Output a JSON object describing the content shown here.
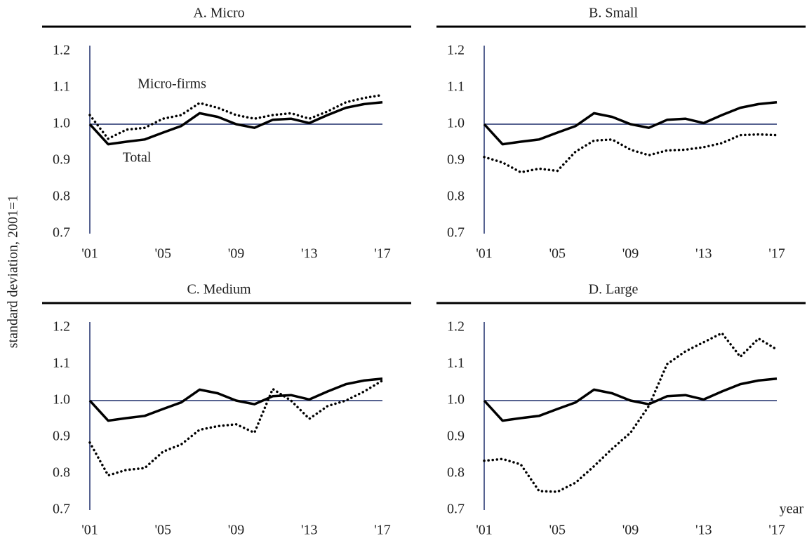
{
  "ylabel": "standard deviation, 2001=1",
  "chart_data": [
    {
      "type": "line",
      "title": "A. Micro",
      "categories": [
        "'01",
        null,
        null,
        null,
        "'05",
        null,
        null,
        null,
        "'09",
        null,
        null,
        null,
        "'13",
        null,
        null,
        null,
        "'17"
      ],
      "series": [
        {
          "name": "Total",
          "color": "#000000",
          "style": "solid",
          "values": [
            1.0,
            0.945,
            0.952,
            0.958,
            0.977,
            0.995,
            1.03,
            1.02,
            1.0,
            0.99,
            1.012,
            1.015,
            1.003,
            1.025,
            1.045,
            1.055,
            1.06
          ]
        },
        {
          "name": "Micro-firms",
          "color": "#000000",
          "style": "dotted",
          "values": [
            1.025,
            0.96,
            0.985,
            0.99,
            1.015,
            1.025,
            1.058,
            1.045,
            1.025,
            1.015,
            1.025,
            1.03,
            1.015,
            1.035,
            1.06,
            1.072,
            1.08
          ]
        }
      ],
      "ylim": [
        0.7,
        1.2
      ],
      "yticks": [
        0.7,
        0.8,
        0.9,
        {
          "value": 1,
          "label": "1.0"
        },
        1.1,
        1.2
      ],
      "refline": 1,
      "axis_color": "#1f2f6b"
    },
    {
      "type": "line",
      "title": "B. Small",
      "categories": [
        "'01",
        null,
        null,
        null,
        "'05",
        null,
        null,
        null,
        "'09",
        null,
        null,
        null,
        "'13",
        null,
        null,
        null,
        "'17"
      ],
      "series": [
        {
          "color": "#000000",
          "style": "solid",
          "values": [
            1.0,
            0.945,
            0.952,
            0.958,
            0.977,
            0.995,
            1.03,
            1.02,
            1.0,
            0.99,
            1.012,
            1.015,
            1.003,
            1.025,
            1.045,
            1.055,
            1.06
          ]
        },
        {
          "color": "#000000",
          "style": "dotted",
          "values": [
            0.91,
            0.895,
            0.868,
            0.878,
            0.872,
            0.925,
            0.955,
            0.958,
            0.93,
            0.915,
            0.928,
            0.93,
            0.937,
            0.948,
            0.97,
            0.972,
            0.97
          ]
        }
      ],
      "ylim": [
        0.7,
        1.2
      ],
      "yticks": [
        0.7,
        0.8,
        0.9,
        {
          "value": 1,
          "label": "1.0"
        },
        1.1,
        1.2
      ],
      "refline": 1,
      "axis_color": "#1f2f6b"
    },
    {
      "type": "line",
      "title": "C. Medium",
      "categories": [
        "'01",
        null,
        null,
        null,
        "'05",
        null,
        null,
        null,
        "'09",
        null,
        null,
        null,
        "'13",
        null,
        null,
        null,
        "'17"
      ],
      "series": [
        {
          "color": "#000000",
          "style": "solid",
          "values": [
            1.0,
            0.945,
            0.952,
            0.958,
            0.977,
            0.995,
            1.03,
            1.02,
            1.0,
            0.99,
            1.012,
            1.015,
            1.003,
            1.025,
            1.045,
            1.055,
            1.06
          ]
        },
        {
          "color": "#000000",
          "style": "dotted",
          "values": [
            0.885,
            0.795,
            0.81,
            0.815,
            0.86,
            0.88,
            0.92,
            0.93,
            0.935,
            0.912,
            1.032,
            1.0,
            0.95,
            0.985,
            1.0,
            1.025,
            1.055
          ]
        }
      ],
      "ylim": [
        0.7,
        1.2
      ],
      "yticks": [
        0.7,
        0.8,
        0.9,
        {
          "value": 1,
          "label": "1.0"
        },
        1.1,
        1.2
      ],
      "refline": 1,
      "axis_color": "#1f2f6b"
    },
    {
      "type": "line",
      "title": "D. Large",
      "xlabel": "year",
      "categories": [
        "'01",
        null,
        null,
        null,
        "'05",
        null,
        null,
        null,
        "'09",
        null,
        null,
        null,
        "'13",
        null,
        null,
        null,
        "'17"
      ],
      "series": [
        {
          "color": "#000000",
          "style": "solid",
          "values": [
            1.0,
            0.945,
            0.952,
            0.958,
            0.977,
            0.995,
            1.03,
            1.02,
            1.0,
            0.99,
            1.012,
            1.015,
            1.003,
            1.025,
            1.045,
            1.055,
            1.06
          ]
        },
        {
          "color": "#000000",
          "style": "dotted",
          "values": [
            0.835,
            0.84,
            0.825,
            0.752,
            0.75,
            0.775,
            0.82,
            0.868,
            0.912,
            0.985,
            1.1,
            1.135,
            1.16,
            1.185,
            1.12,
            1.17,
            1.14
          ]
        }
      ],
      "ylim": [
        0.7,
        1.2
      ],
      "yticks": [
        0.7,
        0.8,
        0.9,
        {
          "value": 1,
          "label": "1.0"
        },
        1.1,
        1.2
      ],
      "refline": 1,
      "axis_color": "#1f2f6b"
    }
  ]
}
